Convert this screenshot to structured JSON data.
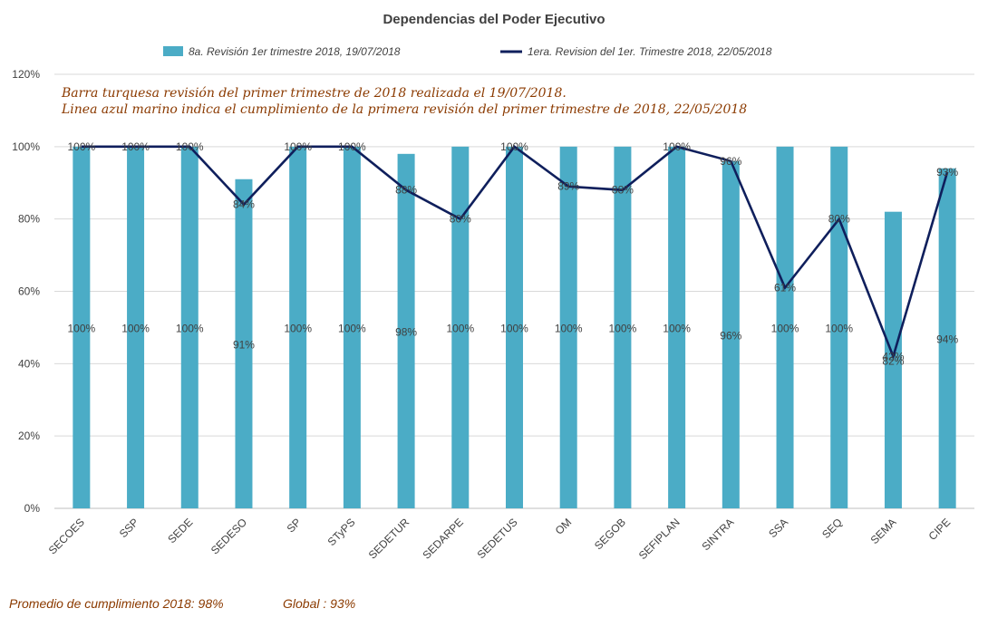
{
  "chart_data": {
    "type": "bar",
    "title": "Dependencias del Poder Ejecutivo",
    "categories": [
      "SECOES",
      "SSP",
      "SEDE",
      "SEDESO",
      "SP",
      "STyPS",
      "SEDETUR",
      "SEDARPE",
      "SEDETUS",
      "OM",
      "SEGOB",
      "SEFIPLAN",
      "SINTRA",
      "SSA",
      "SEQ",
      "SEMA",
      "CIPE"
    ],
    "series": [
      {
        "name": "8a. Revisión 1er trimestre 2018, 19/07/2018",
        "kind": "bar",
        "color": "#4BACC6",
        "values": [
          100,
          100,
          100,
          91,
          100,
          100,
          98,
          100,
          100,
          100,
          100,
          100,
          96,
          100,
          100,
          82,
          94
        ],
        "labels": [
          "100%",
          "100%",
          "100%",
          "91%",
          "100%",
          "100%",
          "98%",
          "100%",
          "100%",
          "100%",
          "100%",
          "100%",
          "96%",
          "100%",
          "100%",
          "82%",
          "94%"
        ]
      },
      {
        "name": "1era. Revision del 1er. Trimestre 2018, 22/05/2018",
        "kind": "line",
        "color": "#0F1F5C",
        "values": [
          100,
          100,
          100,
          84,
          100,
          100,
          88,
          80,
          100,
          89,
          88,
          100,
          96,
          61,
          80,
          42,
          93
        ],
        "labels": [
          "100%",
          "100%",
          "100%",
          "84%",
          "100%",
          "100%",
          "88%",
          "80%",
          "100%",
          "89%",
          "88%",
          "100%",
          "96%",
          "61%",
          "80%",
          "42%",
          "93%"
        ]
      }
    ],
    "ylim": [
      0,
      120
    ],
    "yticks": [
      "0%",
      "20%",
      "40%",
      "60%",
      "80%",
      "100%",
      "120%"
    ],
    "grid": true,
    "legend_position": "top",
    "annotations": [
      "Barra turquesa revisión del primer trimestre de 2018 realizada el 19/07/2018.",
      "Linea azul marino indica el cumplimiento de la primera revisión del primer trimestre de 2018,  22/05/2018"
    ],
    "footer": {
      "promedio": "Promedio de cumplimiento 2018: 98%",
      "global": "Global : 93%"
    }
  }
}
